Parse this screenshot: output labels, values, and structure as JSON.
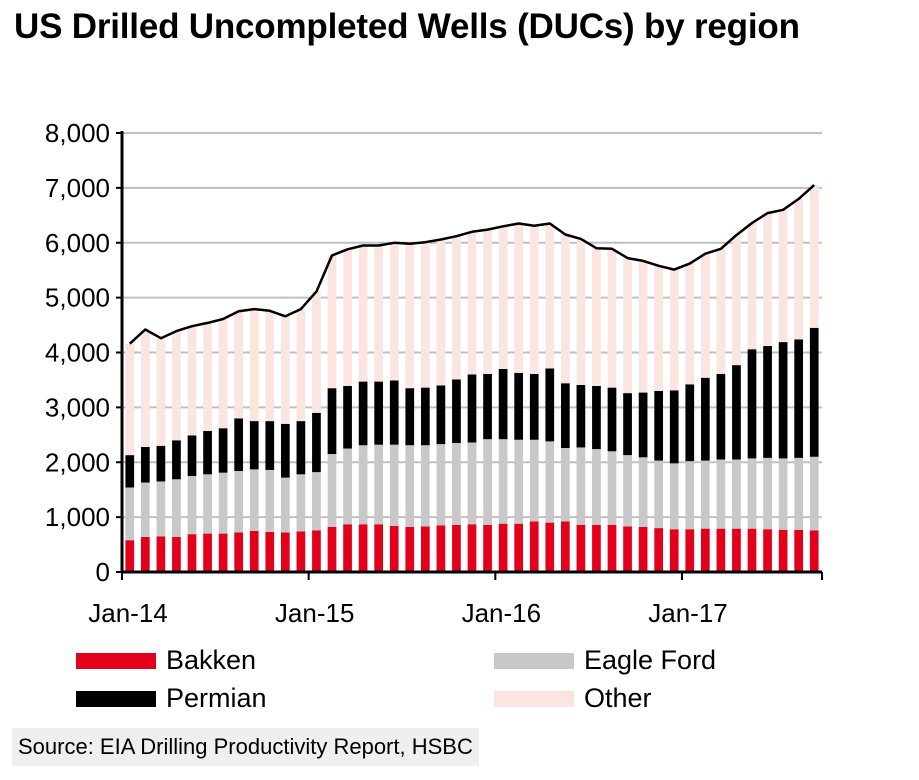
{
  "title": "US Drilled Uncompleted Wells (DUCs) by region",
  "source": "Source:  EIA Drilling Productivity Report, HSBC",
  "colors": {
    "bakken": "#e3001b",
    "eagle_ford": "#c8c8c8",
    "permian": "#000000",
    "other": "#fbe5e0",
    "total_line": "#000000",
    "gridline": "#c0c0c0"
  },
  "chart_data": {
    "type": "bar",
    "stacked": true,
    "xlabel": "",
    "ylabel": "",
    "ylim": [
      0,
      8000
    ],
    "yticks": [
      0,
      1000,
      2000,
      3000,
      4000,
      5000,
      6000,
      7000,
      8000
    ],
    "ytick_labels": [
      "0",
      "1,000",
      "2,000",
      "3,000",
      "4,000",
      "5,000",
      "6,000",
      "7,000",
      "8,000"
    ],
    "xtick_labels": [
      "Jan-14",
      "Jan-15",
      "Jan-16",
      "Jan-17"
    ],
    "xtick_indices": [
      0,
      12,
      24,
      36
    ],
    "grid": true,
    "legend": "bottom",
    "categories": [
      "Jan-14",
      "Feb-14",
      "Mar-14",
      "Apr-14",
      "May-14",
      "Jun-14",
      "Jul-14",
      "Aug-14",
      "Sep-14",
      "Oct-14",
      "Nov-14",
      "Dec-14",
      "Jan-15",
      "Feb-15",
      "Mar-15",
      "Apr-15",
      "May-15",
      "Jun-15",
      "Jul-15",
      "Aug-15",
      "Sep-15",
      "Oct-15",
      "Nov-15",
      "Dec-15",
      "Jan-16",
      "Feb-16",
      "Mar-16",
      "Apr-16",
      "May-16",
      "Jun-16",
      "Jul-16",
      "Aug-16",
      "Sep-16",
      "Oct-16",
      "Nov-16",
      "Dec-16",
      "Jan-17",
      "Feb-17",
      "Mar-17",
      "Apr-17",
      "May-17",
      "Jun-17",
      "Jul-17",
      "Aug-17",
      "Sep-17"
    ],
    "series": [
      {
        "name": "Bakken",
        "color_key": "bakken",
        "values": [
          580,
          640,
          650,
          640,
          690,
          700,
          700,
          720,
          750,
          730,
          720,
          740,
          760,
          820,
          870,
          870,
          870,
          840,
          820,
          830,
          850,
          860,
          870,
          860,
          880,
          880,
          920,
          900,
          920,
          860,
          860,
          860,
          830,
          820,
          800,
          780,
          780,
          790,
          790,
          790,
          790,
          780,
          770,
          770,
          760
        ]
      },
      {
        "name": "Eagle Ford",
        "color_key": "eagle_ford",
        "values": [
          960,
          990,
          1000,
          1050,
          1060,
          1080,
          1110,
          1120,
          1120,
          1130,
          1000,
          1040,
          1060,
          1330,
          1380,
          1440,
          1450,
          1480,
          1490,
          1480,
          1480,
          1490,
          1490,
          1560,
          1540,
          1530,
          1490,
          1480,
          1340,
          1410,
          1380,
          1340,
          1300,
          1270,
          1230,
          1200,
          1240,
          1240,
          1260,
          1260,
          1280,
          1300,
          1300,
          1310,
          1340
        ]
      },
      {
        "name": "Permian",
        "color_key": "permian",
        "values": [
          590,
          650,
          650,
          710,
          740,
          790,
          810,
          960,
          880,
          890,
          980,
          970,
          1080,
          1200,
          1140,
          1160,
          1150,
          1170,
          1040,
          1050,
          1070,
          1160,
          1240,
          1190,
          1280,
          1220,
          1200,
          1330,
          1180,
          1140,
          1150,
          1160,
          1130,
          1180,
          1270,
          1330,
          1400,
          1510,
          1560,
          1720,
          1990,
          2040,
          2120,
          2160,
          2350
        ]
      },
      {
        "name": "Other",
        "color_key": "other",
        "values": [
          2030,
          2140,
          1960,
          1990,
          1990,
          1970,
          1990,
          1950,
          2040,
          2010,
          1960,
          2040,
          2210,
          2420,
          2490,
          2480,
          2480,
          2510,
          2630,
          2650,
          2660,
          2610,
          2600,
          2630,
          2600,
          2720,
          2700,
          2640,
          2710,
          2660,
          2510,
          2530,
          2460,
          2400,
          2280,
          2200,
          2200,
          2260,
          2280,
          2370,
          2300,
          2420,
          2410,
          2560,
          2600
        ]
      }
    ],
    "total_line": {
      "name": "Total",
      "values": [
        4160,
        4420,
        4260,
        4390,
        4480,
        4540,
        4610,
        4750,
        4790,
        4760,
        4660,
        4790,
        5110,
        5770,
        5880,
        5950,
        5950,
        6000,
        5980,
        6010,
        6060,
        6120,
        6200,
        6240,
        6300,
        6350,
        6310,
        6350,
        6150,
        6070,
        5900,
        5890,
        5720,
        5670,
        5580,
        5510,
        5620,
        5800,
        5890,
        6140,
        6360,
        6540,
        6600,
        6800,
        7050
      ]
    }
  },
  "legend": {
    "bakken": "Bakken",
    "eagle_ford": "Eagle Ford",
    "permian": "Permian",
    "other": "Other"
  }
}
